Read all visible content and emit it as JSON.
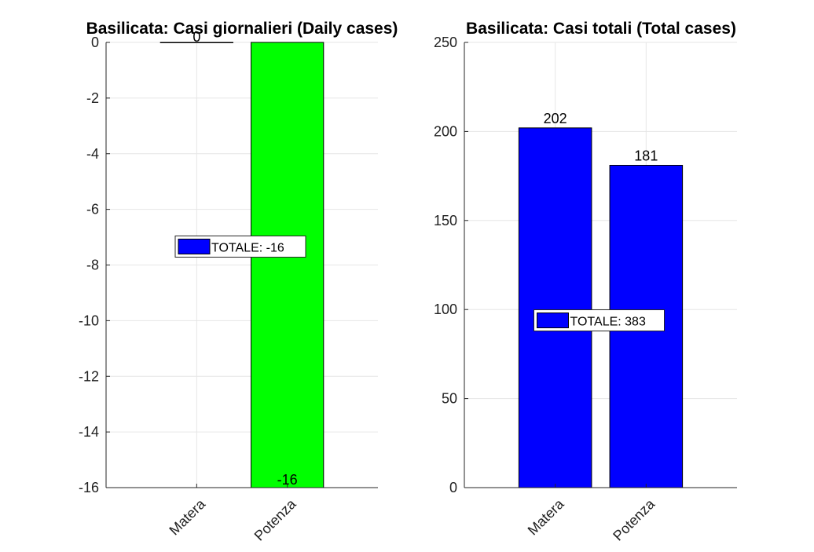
{
  "chart_data": [
    {
      "type": "bar",
      "title": "Basilicata: Casi giornalieri (Daily cases)",
      "categories": [
        "Matera",
        "Potenza"
      ],
      "values": [
        0,
        -16
      ],
      "data_labels": [
        "0",
        "-16"
      ],
      "bar_colors": [
        "#0000ff",
        "#00ff00"
      ],
      "ylim": [
        -16,
        0
      ],
      "yticks": [
        0,
        -2,
        -4,
        -6,
        -8,
        -10,
        -12,
        -14,
        -16
      ],
      "ytick_labels": [
        "0",
        "-2",
        "-4",
        "-6",
        "-8",
        "-10",
        "-12",
        "-14",
        "-16"
      ],
      "grid": true,
      "legend": {
        "label": "TOTALE: -16",
        "color": "#0000ff",
        "placement": "center"
      }
    },
    {
      "type": "bar",
      "title": "Basilicata: Casi totali (Total cases)",
      "categories": [
        "Matera",
        "Potenza"
      ],
      "values": [
        202,
        181
      ],
      "data_labels": [
        "202",
        "181"
      ],
      "bar_colors": [
        "#0000ff",
        "#0000ff"
      ],
      "ylim": [
        0,
        250
      ],
      "yticks": [
        0,
        50,
        100,
        150,
        200,
        250
      ],
      "ytick_labels": [
        "0",
        "50",
        "100",
        "150",
        "200",
        "250"
      ],
      "grid": true,
      "legend": {
        "label": "TOTALE: 383",
        "color": "#0000ff",
        "placement": "center"
      }
    }
  ]
}
